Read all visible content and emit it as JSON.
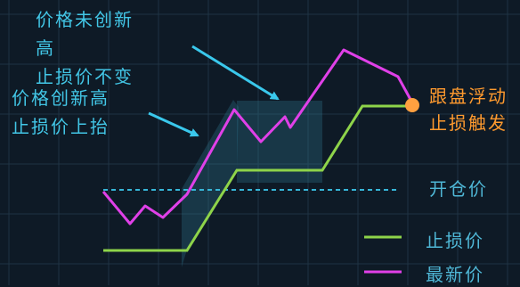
{
  "annotations": {
    "not_new_high_line1": "价格未创新",
    "not_new_high_line2": "高",
    "stop_unchanged": "止损价不变",
    "new_high": "价格创新高",
    "stop_raised": "止损价上抬",
    "trailing_line1": "跟盘浮动",
    "trailing_line2": "止损触发"
  },
  "labels": {
    "entry_price": "开仓价"
  },
  "legend": [
    {
      "label": "止损价",
      "color": "#8ed44a"
    },
    {
      "label": "最新价",
      "color": "#e040e8"
    }
  ],
  "colors": {
    "price_line": "#e040e8",
    "stop_line": "#8ed44a",
    "entry_line": "#37b6d8",
    "trigger_point": "#ffa040",
    "arrow": "#3ac8ec",
    "highlight": "#2b6f86"
  }
}
